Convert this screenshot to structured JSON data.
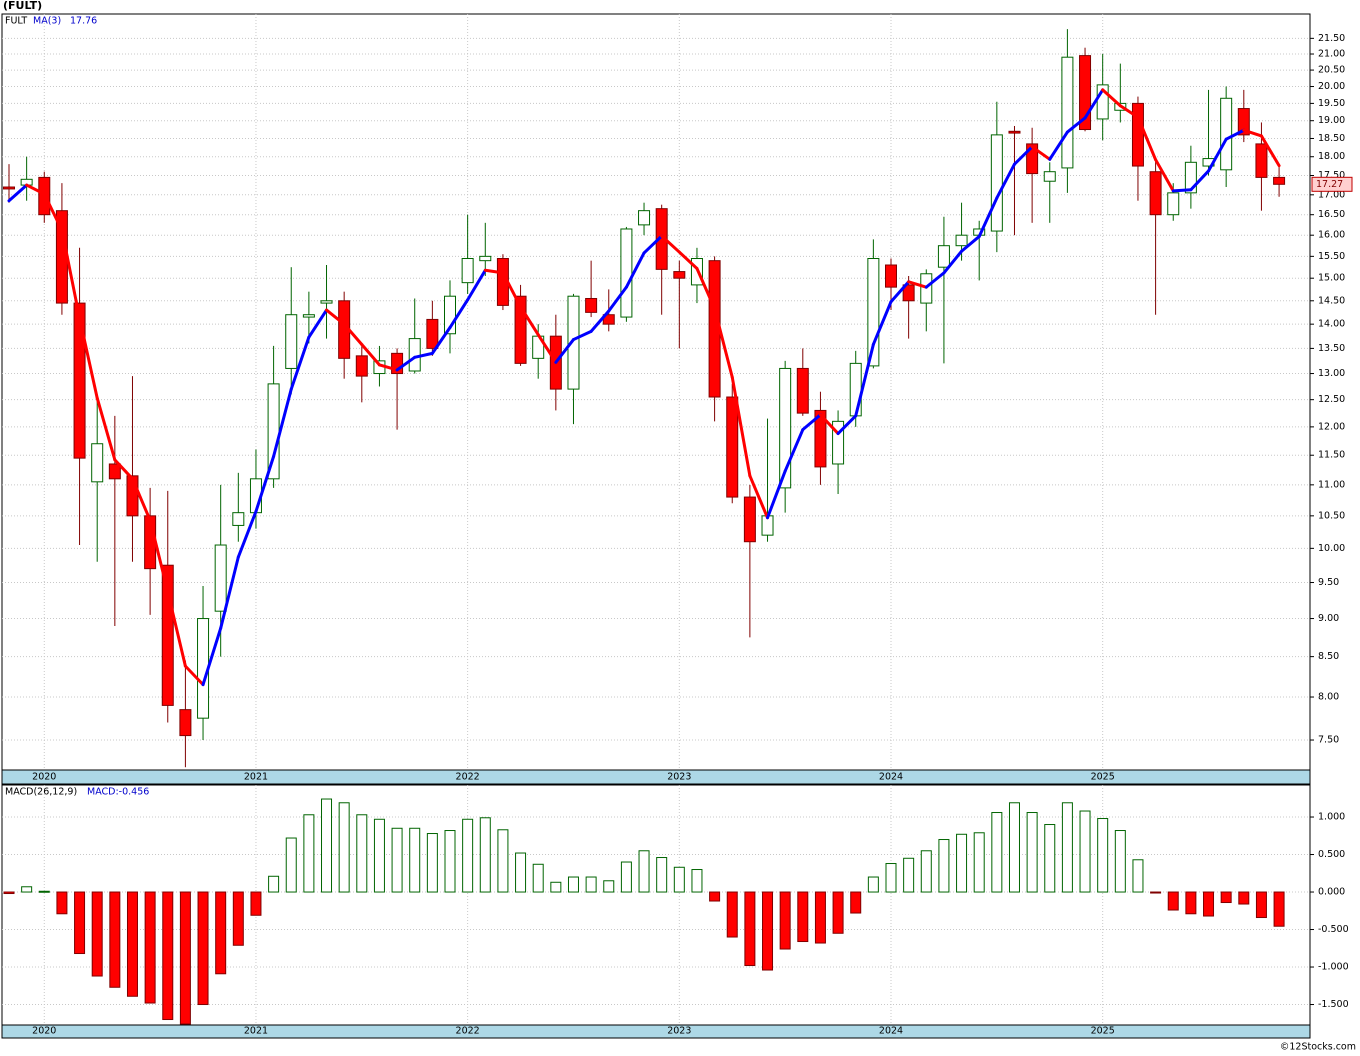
{
  "chart_data": [
    {
      "type": "candlestick",
      "title": "(FULT)",
      "name": "FULT",
      "categories": [
        null,
        null,
        "2020",
        null,
        null,
        null,
        null,
        null,
        null,
        null,
        null,
        null,
        null,
        null,
        "2021",
        null,
        null,
        null,
        null,
        null,
        null,
        null,
        null,
        null,
        null,
        null,
        "2022",
        null,
        null,
        null,
        null,
        null,
        null,
        null,
        null,
        null,
        null,
        null,
        "2023",
        null,
        null,
        null,
        null,
        null,
        null,
        null,
        null,
        null,
        null,
        null,
        "2024",
        null,
        null,
        null,
        null,
        null,
        null,
        null,
        null,
        null,
        null,
        null,
        "2025",
        null,
        null,
        null,
        null,
        null,
        null,
        null,
        null,
        null,
        null
      ],
      "open": [
        17.2,
        17.25,
        17.45,
        16.6,
        14.45,
        11.05,
        11.35,
        11.15,
        10.5,
        9.75,
        7.85,
        7.75,
        9.1,
        10.35,
        10.55,
        11.1,
        13.1,
        14.15,
        14.45,
        14.5,
        13.35,
        13.0,
        13.4,
        13.05,
        14.1,
        13.8,
        14.9,
        15.4,
        15.45,
        14.6,
        13.3,
        13.75,
        12.7,
        14.55,
        14.2,
        14.15,
        16.25,
        16.65,
        15.15,
        14.85,
        15.4,
        12.55,
        10.8,
        10.2,
        10.95,
        13.1,
        12.3,
        11.35,
        12.2,
        13.15,
        15.3,
        14.85,
        14.45,
        15.25,
        15.75,
        16.0,
        16.1,
        18.7,
        18.35,
        17.35,
        17.7,
        20.95,
        19.05,
        19.3,
        19.5,
        17.6,
        16.5,
        17.05,
        17.75,
        17.65,
        19.35,
        18.35,
        17.45
      ],
      "high": [
        17.8,
        18.0,
        17.6,
        17.3,
        15.7,
        12.6,
        12.2,
        12.95,
        10.95,
        10.9,
        8.45,
        9.45,
        11.0,
        11.2,
        11.6,
        13.55,
        15.25,
        14.7,
        15.3,
        14.7,
        13.55,
        13.55,
        13.5,
        14.55,
        14.5,
        14.95,
        16.5,
        16.3,
        15.55,
        14.85,
        14.0,
        14.2,
        14.65,
        15.4,
        14.75,
        16.2,
        16.8,
        16.75,
        15.4,
        15.7,
        15.5,
        12.8,
        11.0,
        12.15,
        13.25,
        13.5,
        12.65,
        12.3,
        13.45,
        15.9,
        15.45,
        15.05,
        15.2,
        16.45,
        16.8,
        16.35,
        19.55,
        18.85,
        18.8,
        17.85,
        21.8,
        21.2,
        21.0,
        20.7,
        19.7,
        17.9,
        17.3,
        18.3,
        19.9,
        20.0,
        19.9,
        18.95,
        17.8
      ],
      "low": [
        16.8,
        16.85,
        16.3,
        14.2,
        10.05,
        9.8,
        8.9,
        9.8,
        9.05,
        7.7,
        7.2,
        7.5,
        8.5,
        10.1,
        10.3,
        10.95,
        12.6,
        13.6,
        13.7,
        12.9,
        12.45,
        12.75,
        11.95,
        13.0,
        13.35,
        13.4,
        14.65,
        15.05,
        14.3,
        13.15,
        12.9,
        12.3,
        12.05,
        14.15,
        13.85,
        14.05,
        16.0,
        14.2,
        13.5,
        14.45,
        12.1,
        10.7,
        8.75,
        10.1,
        10.55,
        12.2,
        11.0,
        10.85,
        12.0,
        13.1,
        14.3,
        13.7,
        13.85,
        13.2,
        15.4,
        14.95,
        15.6,
        16.0,
        16.3,
        16.3,
        17.05,
        18.7,
        18.45,
        18.95,
        16.85,
        14.2,
        16.35,
        16.65,
        17.5,
        17.2,
        18.4,
        16.6,
        16.95
      ],
      "close": [
        17.15,
        17.4,
        16.5,
        14.45,
        11.45,
        11.7,
        11.1,
        10.5,
        9.7,
        7.9,
        7.55,
        9.0,
        10.05,
        10.55,
        11.1,
        12.8,
        14.2,
        14.2,
        14.5,
        13.3,
        12.95,
        13.25,
        13.0,
        13.7,
        13.5,
        14.6,
        15.45,
        15.5,
        14.4,
        13.2,
        13.75,
        12.7,
        14.6,
        14.25,
        14.0,
        16.15,
        16.6,
        15.2,
        15.0,
        15.45,
        12.55,
        10.8,
        10.1,
        10.5,
        13.1,
        12.25,
        11.3,
        12.1,
        13.2,
        15.45,
        14.8,
        14.5,
        15.1,
        15.75,
        16.0,
        16.15,
        18.6,
        18.65,
        17.55,
        17.6,
        20.9,
        18.75,
        20.05,
        19.5,
        17.75,
        16.5,
        17.05,
        17.85,
        17.95,
        19.65,
        18.6,
        17.45,
        17.27
      ],
      "up_color": "#ffffff",
      "up_edge": "#006400",
      "down_color": "#ff0000",
      "down_edge": "#800000",
      "ma": {
        "name": "MA(3)",
        "up_color": "#0000ff",
        "down_color": "#ff0000",
        "values": [
          16.85,
          17.25,
          17.02,
          16.12,
          14.13,
          12.53,
          11.42,
          11.1,
          10.43,
          9.37,
          8.38,
          8.15,
          8.87,
          9.87,
          10.57,
          11.48,
          12.7,
          13.73,
          14.3,
          14.0,
          13.58,
          13.17,
          13.07,
          13.32,
          13.4,
          13.93,
          14.52,
          15.18,
          15.12,
          14.37,
          13.78,
          13.22,
          13.68,
          13.85,
          14.28,
          14.8,
          15.58,
          15.98,
          15.6,
          15.22,
          14.33,
          12.93,
          11.15,
          10.47,
          11.23,
          11.95,
          12.22,
          11.88,
          12.2,
          13.58,
          14.48,
          14.92,
          14.8,
          15.12,
          15.62,
          15.97,
          16.92,
          17.8,
          18.27,
          17.93,
          18.68,
          19.08,
          19.9,
          19.43,
          19.1,
          17.92,
          17.1,
          17.13,
          17.62,
          18.48,
          18.73,
          18.57,
          17.76
        ]
      },
      "log_scale": true,
      "grid": true,
      "ylim": [
        7.17,
        22.3
      ],
      "yticks": [
        {
          "value": 7.5,
          "label": "7.50"
        },
        {
          "value": 8,
          "label": "8.00"
        },
        {
          "value": 8.5,
          "label": "8.50"
        },
        {
          "value": 9,
          "label": "9.00"
        },
        {
          "value": 9.5,
          "label": "9.50"
        },
        {
          "value": 10,
          "label": "10.00"
        },
        {
          "value": 10.5,
          "label": "10.50"
        },
        {
          "value": 11,
          "label": "11.00"
        },
        {
          "value": 11.5,
          "label": "11.50"
        },
        {
          "value": 12,
          "label": "12.00"
        },
        {
          "value": 12.5,
          "label": "12.50"
        },
        {
          "value": 13,
          "label": "13.00"
        },
        {
          "value": 13.5,
          "label": "13.50"
        },
        {
          "value": 14,
          "label": "14.00"
        },
        {
          "value": 14.5,
          "label": "14.50"
        },
        {
          "value": 15,
          "label": "15.00"
        },
        {
          "value": 15.5,
          "label": "15.50"
        },
        {
          "value": 16,
          "label": "16.00"
        },
        {
          "value": 16.5,
          "label": "16.50"
        },
        {
          "value": 17,
          "label": "17.00"
        },
        {
          "value": 17.5,
          "label": "17.50"
        },
        {
          "value": 18,
          "label": "18.00"
        },
        {
          "value": 18.5,
          "label": "18.50"
        },
        {
          "value": 19,
          "label": "19.00"
        },
        {
          "value": 19.5,
          "label": "19.50"
        },
        {
          "value": 20,
          "label": "20.00"
        },
        {
          "value": 20.5,
          "label": "20.50"
        },
        {
          "value": 21,
          "label": "21.00"
        },
        {
          "value": 21.5,
          "label": "21.50"
        }
      ]
    },
    {
      "type": "bar",
      "name": "MACD(26,12,9)",
      "current_label": "MACD:-0.456",
      "categories": [
        null,
        null,
        "2020",
        null,
        null,
        null,
        null,
        null,
        null,
        null,
        null,
        null,
        null,
        null,
        "2021",
        null,
        null,
        null,
        null,
        null,
        null,
        null,
        null,
        null,
        null,
        null,
        "2022",
        null,
        null,
        null,
        null,
        null,
        null,
        null,
        null,
        null,
        null,
        null,
        "2023",
        null,
        null,
        null,
        null,
        null,
        null,
        null,
        null,
        null,
        null,
        null,
        "2024",
        null,
        null,
        null,
        null,
        null,
        null,
        null,
        null,
        null,
        null,
        null,
        "2025",
        null,
        null,
        null,
        null,
        null,
        null,
        null,
        null,
        null,
        null
      ],
      "values": [
        -0.02,
        0.07,
        0.01,
        -0.29,
        -0.82,
        -1.12,
        -1.27,
        -1.39,
        -1.48,
        -1.7,
        -1.76,
        -1.5,
        -1.09,
        -0.71,
        -0.31,
        0.21,
        0.72,
        1.03,
        1.24,
        1.19,
        1.03,
        0.97,
        0.85,
        0.85,
        0.78,
        0.82,
        0.97,
        0.99,
        0.83,
        0.52,
        0.37,
        0.13,
        0.2,
        0.2,
        0.15,
        0.4,
        0.55,
        0.46,
        0.33,
        0.3,
        -0.12,
        -0.6,
        -0.98,
        -1.04,
        -0.76,
        -0.66,
        -0.68,
        -0.55,
        -0.28,
        0.2,
        0.38,
        0.45,
        0.55,
        0.7,
        0.77,
        0.79,
        1.06,
        1.19,
        1.06,
        0.9,
        1.19,
        1.08,
        0.98,
        0.82,
        0.43,
        -0.01,
        -0.24,
        -0.29,
        -0.32,
        -0.14,
        -0.16,
        -0.34,
        -0.456
      ],
      "up_color": "#ffffff",
      "up_edge": "#006400",
      "down_color": "#ff0000",
      "down_edge": "#800000",
      "grid": true,
      "ylim": [
        -1.773,
        1.427
      ],
      "yticks": [
        {
          "value": -1.5,
          "label": "-1.500"
        },
        {
          "value": -1,
          "label": "-1.000"
        },
        {
          "value": -0.5,
          "label": "-0.500"
        },
        {
          "value": 0,
          "label": "0.000"
        },
        {
          "value": 0.5,
          "label": "0.500"
        },
        {
          "value": 1,
          "label": "1.000"
        }
      ]
    }
  ],
  "footer": "©12Stocks.com"
}
